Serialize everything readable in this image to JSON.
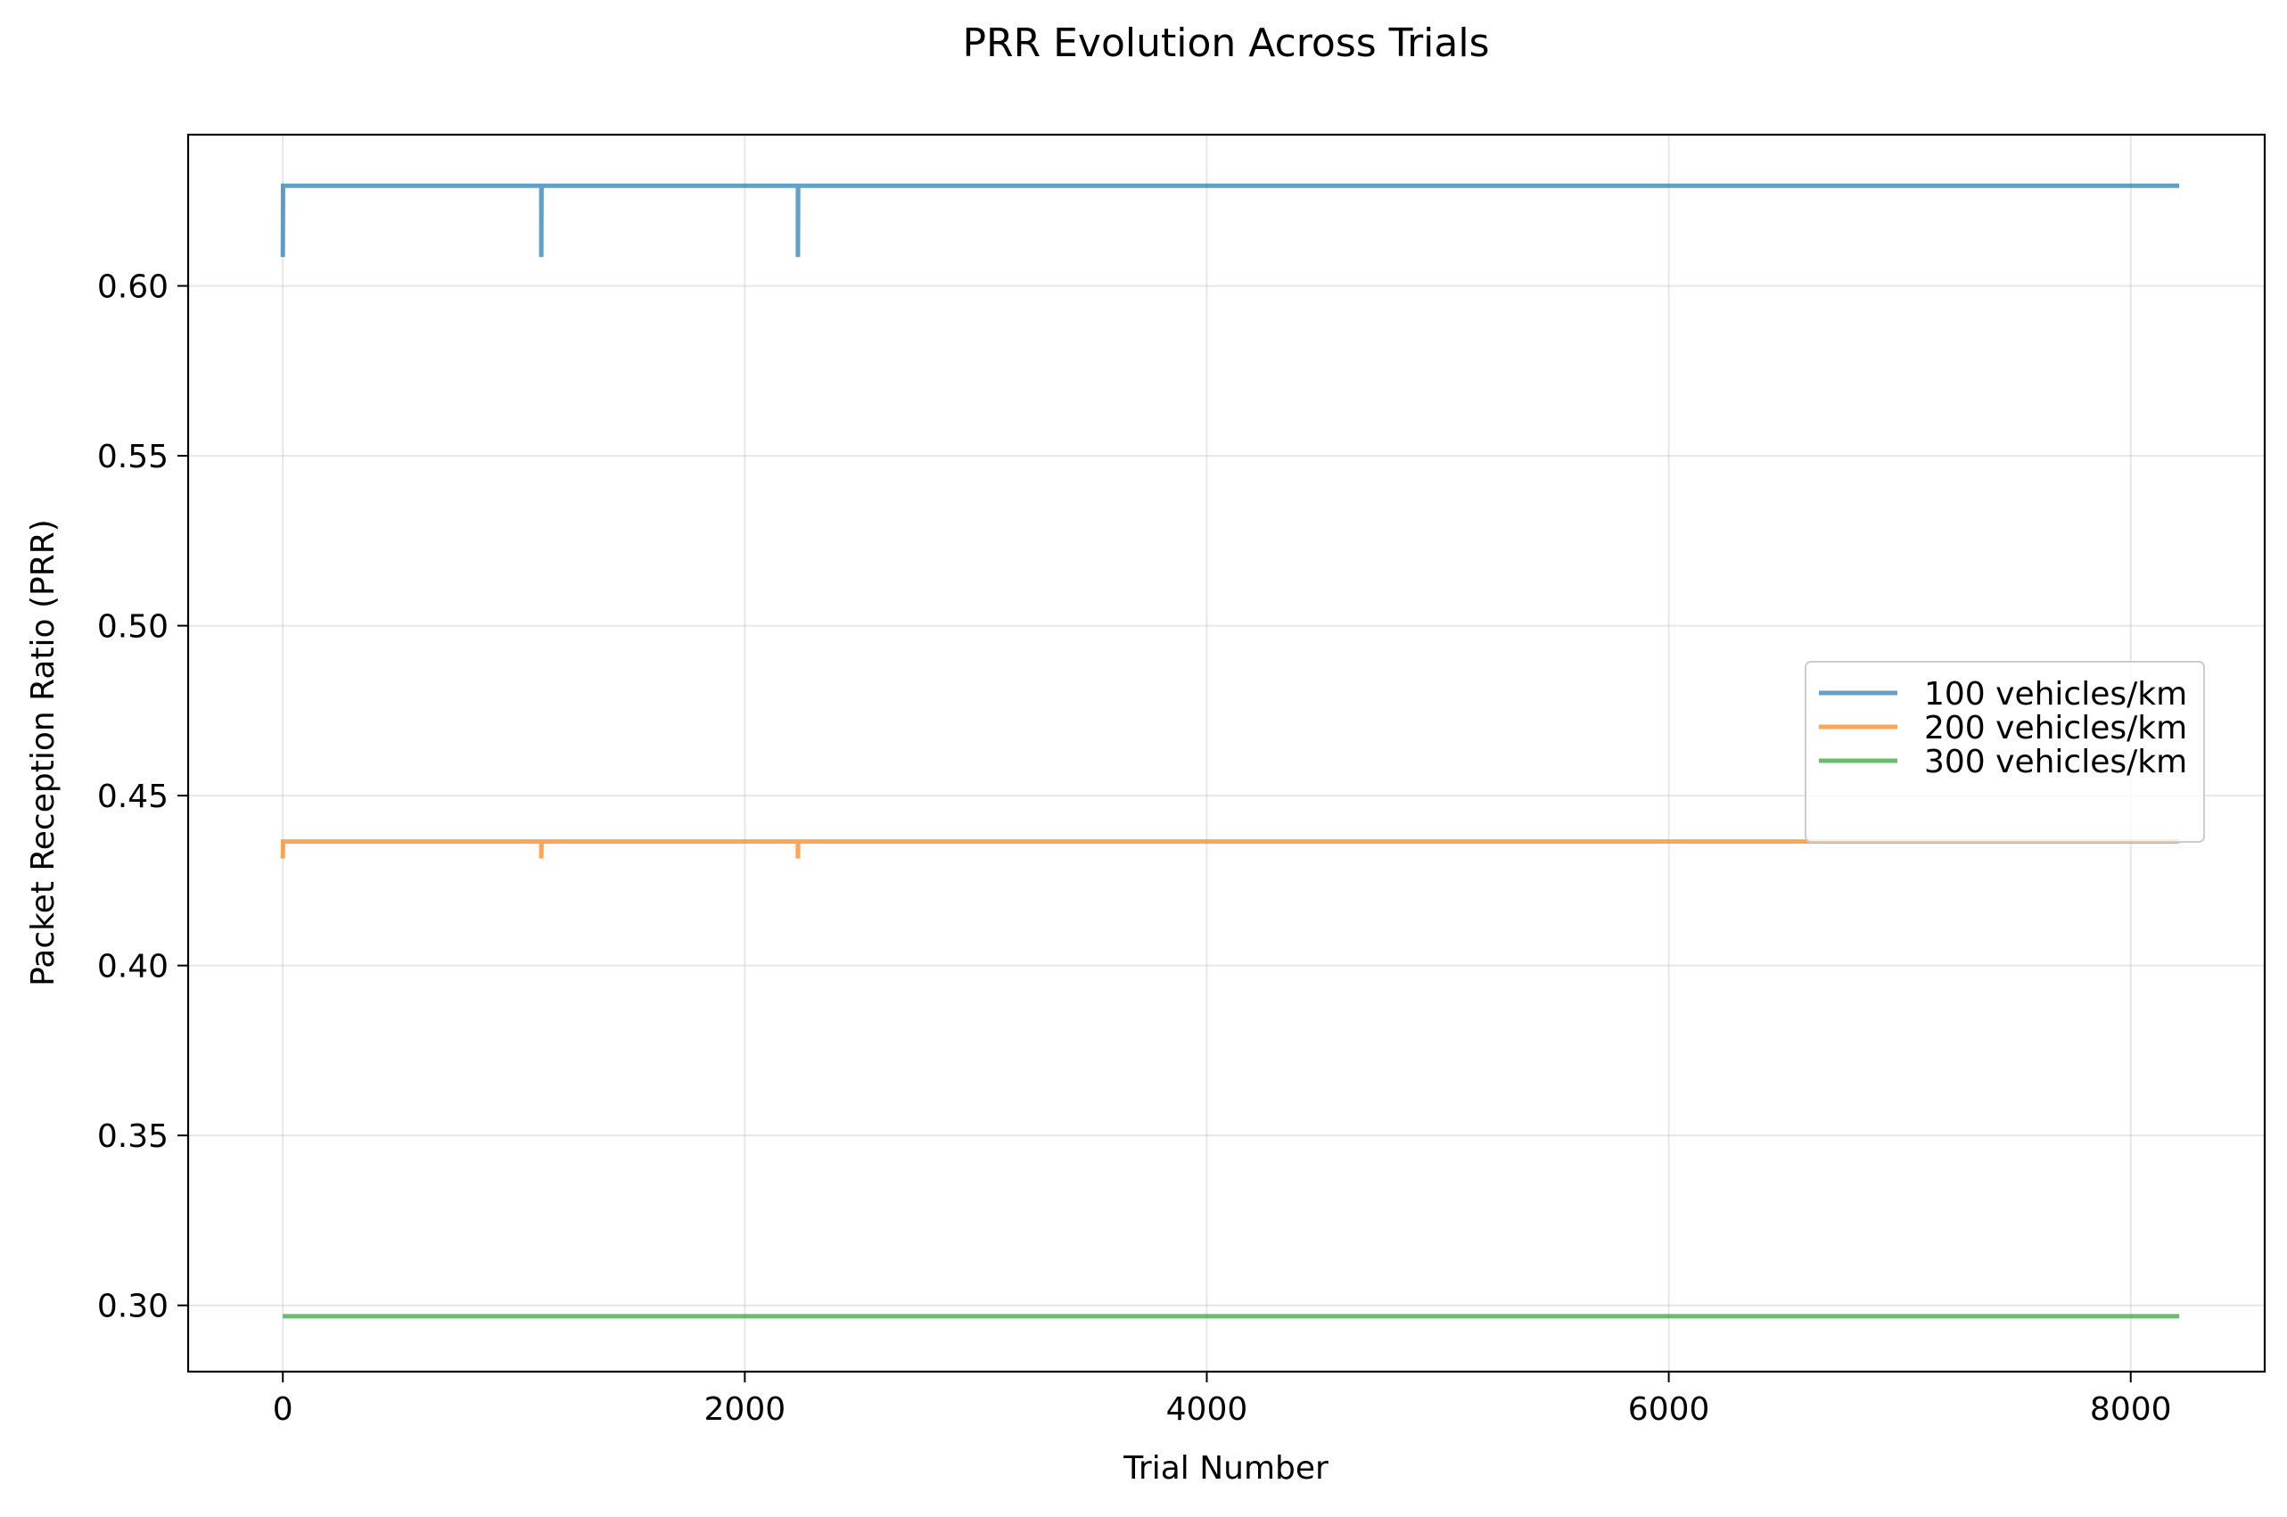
{
  "chart_data": {
    "type": "line",
    "title": "PRR Evolution Across Trials",
    "xlabel": "Trial Number",
    "ylabel": "Packet Reception Ratio (PRR)",
    "xlim": [
      -410,
      8580
    ],
    "ylim": [
      0.2805,
      0.6445
    ],
    "xticks": [
      0,
      2000,
      4000,
      6000,
      8000
    ],
    "xtick_labels": [
      "0",
      "2000",
      "4000",
      "6000",
      "8000"
    ],
    "yticks": [
      0.3,
      0.35,
      0.4,
      0.45,
      0.5,
      0.55,
      0.6
    ],
    "ytick_labels": [
      "0.30",
      "0.35",
      "0.40",
      "0.45",
      "0.50",
      "0.55",
      "0.60"
    ],
    "grid": true,
    "legend_position": "center-right",
    "series": [
      {
        "name": "100 vehicles/km",
        "color": "#1f77b4",
        "x": [
          0,
          0,
          1,
          1119,
          1119,
          1120,
          2230,
          2230,
          2231,
          8210
        ],
        "y": [
          0.6085,
          0.6085,
          0.6295,
          0.6295,
          0.6085,
          0.6295,
          0.6295,
          0.6085,
          0.6295,
          0.6295
        ]
      },
      {
        "name": "200 vehicles/km",
        "color": "#ff7f0e",
        "x": [
          0,
          0,
          1,
          1119,
          1119,
          1120,
          2230,
          2230,
          2231,
          8210
        ],
        "y": [
          0.4315,
          0.4315,
          0.4365,
          0.4365,
          0.4315,
          0.4365,
          0.4365,
          0.4315,
          0.4365,
          0.4365
        ]
      },
      {
        "name": "300 vehicles/km",
        "color": "#2ca02c",
        "x": [
          0,
          8210
        ],
        "y": [
          0.2968,
          0.2968
        ]
      }
    ]
  }
}
